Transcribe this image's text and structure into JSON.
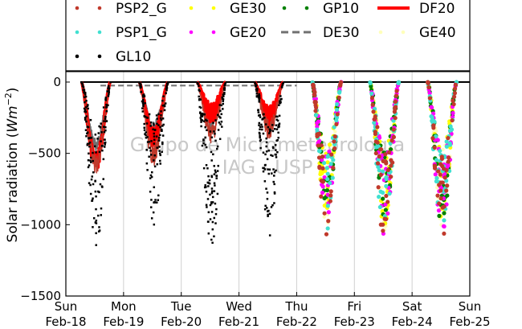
{
  "chart_data": {
    "type": "scatter",
    "ylabel": "Solar radiation (W m⁻²)",
    "ylabel_parts": {
      "main": "Solar radiation (",
      "unit": "Wm",
      "exp": "−2",
      "close": ")"
    },
    "ylim": [
      -1500,
      80
    ],
    "yticks": [
      0,
      -500,
      -1000,
      -1500
    ],
    "ytick_labels": [
      "0",
      "−500",
      "−1000",
      "−1500"
    ],
    "xlim": [
      0,
      7
    ],
    "xticks": [
      0,
      1,
      2,
      3,
      4,
      5,
      6,
      7
    ],
    "xtick_labels": [
      [
        "Sun",
        "Feb-18"
      ],
      [
        "Mon",
        "Feb-19"
      ],
      [
        "Tue",
        "Feb-20"
      ],
      [
        "Wed",
        "Feb-21"
      ],
      [
        "Thu",
        "Feb-22"
      ],
      [
        "Fri",
        "Feb-23"
      ],
      [
        "Sat",
        "Feb-24"
      ],
      [
        "Sun",
        "Feb-25"
      ]
    ],
    "grid": "vertical",
    "watermark": [
      "Grupo de Micrometeorologia",
      "IAG - USP"
    ],
    "legend_position": "top",
    "series": [
      {
        "name": "PSP2_G",
        "color": "#c0392b",
        "marker": "dot",
        "days": [
          0,
          1,
          2,
          3,
          4,
          5,
          6
        ],
        "peaks": [
          -580,
          -520,
          -360,
          -330,
          -1100,
          -1120,
          -1110
        ]
      },
      {
        "name": "PSP1_G",
        "color": "#40e0d0",
        "marker": "dot",
        "days": [
          4,
          5,
          6
        ],
        "peaks": [
          -1080,
          -1100,
          -1090
        ]
      },
      {
        "name": "GL10",
        "color": "#000000",
        "marker": "dot",
        "days": [
          0,
          1,
          2,
          3
        ],
        "peaks": [
          -1180,
          -1000,
          -1160,
          -1080
        ]
      },
      {
        "name": "GE30",
        "color": "#ffff00",
        "marker": "dot",
        "days": [
          4,
          5,
          6
        ],
        "peaks": [
          -1000,
          -1040,
          -1000
        ]
      },
      {
        "name": "GE20",
        "color": "#ff00ff",
        "marker": "dot",
        "days": [
          4,
          5,
          6
        ],
        "peaks": [
          -1050,
          -1080,
          -1060
        ]
      },
      {
        "name": "GP10",
        "color": "#008000",
        "marker": "dot",
        "days": [
          4,
          5,
          6
        ],
        "peaks": [
          -1060,
          -1090,
          -1070
        ]
      },
      {
        "name": "DE30",
        "color": "#707070",
        "marker": "dash",
        "days": [
          0,
          1,
          2,
          3
        ],
        "peaks": [
          -440,
          -320,
          -300,
          -290
        ]
      },
      {
        "name": "DF20",
        "color": "#ff0000",
        "marker": "line",
        "days": [
          0,
          1,
          2,
          3
        ],
        "peaks": [
          -560,
          -390,
          -220,
          -240
        ]
      },
      {
        "name": "GE40",
        "color": "#ffffbb",
        "marker": "dot",
        "days": [
          4,
          5,
          6
        ],
        "peaks": [
          -1020,
          -1060,
          -1040
        ]
      }
    ]
  }
}
